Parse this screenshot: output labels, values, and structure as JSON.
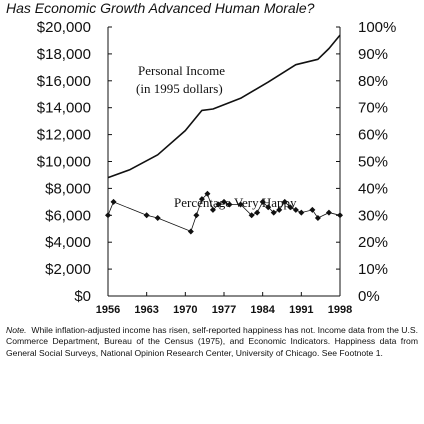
{
  "title": "Has Economic Growth Advanced Human Morale?",
  "note": {
    "label": "Note.",
    "text": "While inflation-adjusted income has risen, self-reported happiness has not. Income data from the U.S. Commerce Department, Bureau of the Census (1975), and Economic Indicators. Happiness data from General Social Surveys, National Opinion Research Center, University of Chicago. See Footnote 1."
  },
  "chart_data": {
    "type": "line",
    "title": "Has Economic Growth Advanced Human Morale?",
    "x_range": [
      1956,
      1998
    ],
    "x_ticks": [
      "1956",
      "1963",
      "1970",
      "1977",
      "1984",
      "1991",
      "1998"
    ],
    "y_left": {
      "range": [
        0,
        20000
      ],
      "ticks": [
        "$0",
        "$2,000",
        "$4,000",
        "$6,000",
        "$8,000",
        "$10,000",
        "$12,000",
        "$14,000",
        "$16,000",
        "$18,000",
        "$20,000"
      ]
    },
    "y_right": {
      "range": [
        0,
        100
      ],
      "ticks": [
        "0%",
        "10%",
        "20%",
        "30%",
        "40%",
        "50%",
        "60%",
        "70%",
        "80%",
        "90%",
        "100%"
      ]
    },
    "annotations": [
      {
        "text": "Personal Income",
        "near": "income line"
      },
      {
        "text": "(in 1995 dollars)",
        "near": "income line"
      },
      {
        "text": "Percentage Very Happy",
        "near": "happiness markers"
      }
    ],
    "series": [
      {
        "name": "Personal Income",
        "axis": "left",
        "style": "line",
        "x": [
          1956,
          1960,
          1965,
          1970,
          1973,
          1975,
          1980,
          1985,
          1990,
          1994,
          1996,
          1998
        ],
        "y": [
          8800,
          9400,
          10500,
          12300,
          13800,
          13900,
          14700,
          15900,
          17200,
          17600,
          18400,
          19400
        ]
      },
      {
        "name": "Percentage Very Happy",
        "axis": "right",
        "style": "markers",
        "x": [
          1956,
          1957,
          1963,
          1965,
          1971,
          1972,
          1973,
          1974,
          1975,
          1976,
          1977,
          1978,
          1980,
          1982,
          1983,
          1984,
          1985,
          1986,
          1987,
          1988,
          1989,
          1990,
          1991,
          1993,
          1994,
          1996,
          1998
        ],
        "y": [
          30,
          35,
          30,
          29,
          24,
          30,
          36,
          38,
          32,
          34,
          35,
          34,
          34,
          30,
          31,
          35,
          33,
          31,
          32,
          35,
          33,
          32,
          31,
          32,
          29,
          31,
          30
        ]
      }
    ]
  }
}
